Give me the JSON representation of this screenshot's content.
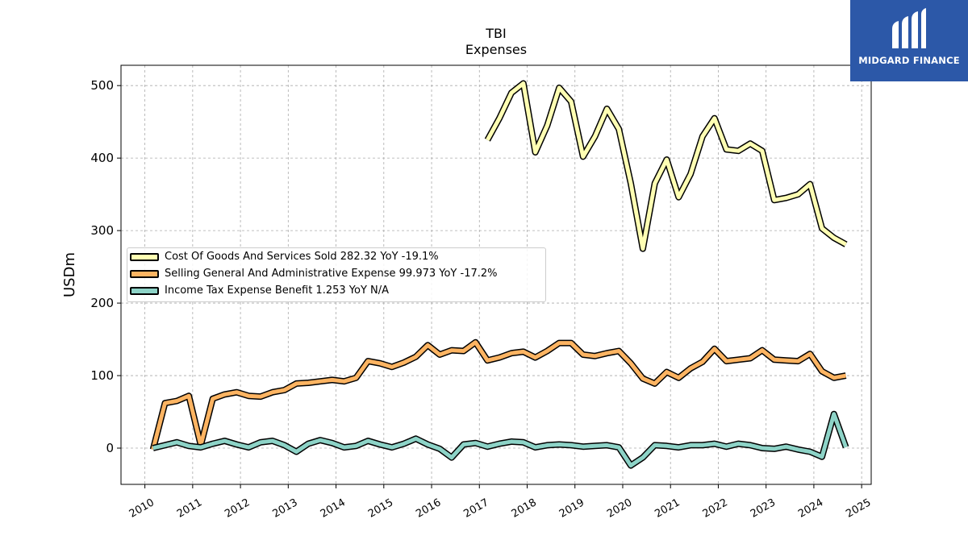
{
  "chart_data": {
    "type": "line",
    "title": "TBI",
    "subtitle": "Expenses",
    "ylabel": "USDm",
    "xlabel": "",
    "xlim": [
      2009.5,
      2025.2
    ],
    "ylim": [
      -50,
      528
    ],
    "yticks": [
      0,
      100,
      200,
      300,
      400,
      500
    ],
    "xticks": [
      "2010",
      "2011",
      "2012",
      "2013",
      "2014",
      "2015",
      "2016",
      "2017",
      "2018",
      "2019",
      "2020",
      "2021",
      "2022",
      "2023",
      "2024",
      "2025"
    ],
    "grid": true,
    "legend_position": "center-left",
    "series": [
      {
        "name": "Cost Of Goods And Services Sold  282.32 YoY -19.1%",
        "color": "#ffffb3",
        "points": [
          [
            2017.17,
            425
          ],
          [
            2017.42,
            455
          ],
          [
            2017.67,
            490
          ],
          [
            2017.92,
            503
          ],
          [
            2018.17,
            408
          ],
          [
            2018.42,
            445
          ],
          [
            2018.67,
            497
          ],
          [
            2018.92,
            478
          ],
          [
            2019.17,
            402
          ],
          [
            2019.42,
            430
          ],
          [
            2019.67,
            468
          ],
          [
            2019.92,
            440
          ],
          [
            2020.17,
            365
          ],
          [
            2020.42,
            275
          ],
          [
            2020.67,
            365
          ],
          [
            2020.92,
            398
          ],
          [
            2021.17,
            346
          ],
          [
            2021.42,
            378
          ],
          [
            2021.67,
            430
          ],
          [
            2021.92,
            455
          ],
          [
            2022.17,
            412
          ],
          [
            2022.42,
            410
          ],
          [
            2022.67,
            420
          ],
          [
            2022.92,
            410
          ],
          [
            2023.17,
            342
          ],
          [
            2023.42,
            345
          ],
          [
            2023.67,
            350
          ],
          [
            2023.92,
            364
          ],
          [
            2024.17,
            303
          ],
          [
            2024.42,
            290
          ],
          [
            2024.67,
            281
          ]
        ]
      },
      {
        "name": "Selling General And Administrative Expense  99.973 YoY -17.2%",
        "color": "#fdb462",
        "points": [
          [
            2010.17,
            -2
          ],
          [
            2010.42,
            62
          ],
          [
            2010.67,
            65
          ],
          [
            2010.92,
            72
          ],
          [
            2011.17,
            4
          ],
          [
            2011.42,
            68
          ],
          [
            2011.67,
            74
          ],
          [
            2011.92,
            77
          ],
          [
            2012.17,
            72
          ],
          [
            2012.42,
            71
          ],
          [
            2012.67,
            77
          ],
          [
            2012.92,
            80
          ],
          [
            2013.17,
            89
          ],
          [
            2013.42,
            90
          ],
          [
            2013.67,
            92
          ],
          [
            2013.92,
            94
          ],
          [
            2014.17,
            92
          ],
          [
            2014.42,
            97
          ],
          [
            2014.67,
            120
          ],
          [
            2014.92,
            117
          ],
          [
            2015.17,
            112
          ],
          [
            2015.42,
            118
          ],
          [
            2015.67,
            126
          ],
          [
            2015.92,
            142
          ],
          [
            2016.17,
            129
          ],
          [
            2016.42,
            135
          ],
          [
            2016.67,
            134
          ],
          [
            2016.92,
            146
          ],
          [
            2017.17,
            121
          ],
          [
            2017.42,
            125
          ],
          [
            2017.67,
            131
          ],
          [
            2017.92,
            133
          ],
          [
            2018.17,
            125
          ],
          [
            2018.42,
            134
          ],
          [
            2018.67,
            145
          ],
          [
            2018.92,
            145
          ],
          [
            2019.17,
            129
          ],
          [
            2019.42,
            127
          ],
          [
            2019.67,
            131
          ],
          [
            2019.92,
            134
          ],
          [
            2020.17,
            117
          ],
          [
            2020.42,
            96
          ],
          [
            2020.67,
            89
          ],
          [
            2020.92,
            105
          ],
          [
            2021.17,
            97
          ],
          [
            2021.42,
            110
          ],
          [
            2021.67,
            119
          ],
          [
            2021.92,
            137
          ],
          [
            2022.17,
            120
          ],
          [
            2022.42,
            122
          ],
          [
            2022.67,
            124
          ],
          [
            2022.92,
            135
          ],
          [
            2023.17,
            122
          ],
          [
            2023.42,
            121
          ],
          [
            2023.67,
            120
          ],
          [
            2023.92,
            130
          ],
          [
            2024.17,
            106
          ],
          [
            2024.42,
            97
          ],
          [
            2024.67,
            100
          ]
        ]
      },
      {
        "name": "Income Tax Expense Benefit  1.253 YoY N/A",
        "color": "#8dd3c7",
        "points": [
          [
            2010.17,
            0
          ],
          [
            2010.42,
            4
          ],
          [
            2010.67,
            8
          ],
          [
            2010.92,
            3
          ],
          [
            2011.17,
            1
          ],
          [
            2011.42,
            6
          ],
          [
            2011.67,
            10
          ],
          [
            2011.92,
            5
          ],
          [
            2012.17,
            1
          ],
          [
            2012.42,
            8
          ],
          [
            2012.67,
            10
          ],
          [
            2012.92,
            4
          ],
          [
            2013.17,
            -5
          ],
          [
            2013.42,
            6
          ],
          [
            2013.67,
            11
          ],
          [
            2013.92,
            7
          ],
          [
            2014.17,
            1
          ],
          [
            2014.42,
            3
          ],
          [
            2014.67,
            10
          ],
          [
            2014.92,
            5
          ],
          [
            2015.17,
            1
          ],
          [
            2015.42,
            6
          ],
          [
            2015.67,
            13
          ],
          [
            2015.92,
            5
          ],
          [
            2016.17,
            -1
          ],
          [
            2016.42,
            -13
          ],
          [
            2016.67,
            5
          ],
          [
            2016.92,
            7
          ],
          [
            2017.17,
            2
          ],
          [
            2017.42,
            6
          ],
          [
            2017.67,
            9
          ],
          [
            2017.92,
            8
          ],
          [
            2018.17,
            1
          ],
          [
            2018.42,
            4
          ],
          [
            2018.67,
            5
          ],
          [
            2018.92,
            4
          ],
          [
            2019.17,
            2
          ],
          [
            2019.42,
            3
          ],
          [
            2019.67,
            4
          ],
          [
            2019.92,
            1
          ],
          [
            2020.17,
            -24
          ],
          [
            2020.42,
            -13
          ],
          [
            2020.67,
            4
          ],
          [
            2020.92,
            3
          ],
          [
            2021.17,
            1
          ],
          [
            2021.42,
            4
          ],
          [
            2021.67,
            4
          ],
          [
            2021.92,
            6
          ],
          [
            2022.17,
            2
          ],
          [
            2022.42,
            6
          ],
          [
            2022.67,
            4
          ],
          [
            2022.92,
            0
          ],
          [
            2023.17,
            -1
          ],
          [
            2023.42,
            2
          ],
          [
            2023.67,
            -2
          ],
          [
            2023.92,
            -5
          ],
          [
            2024.17,
            -12
          ],
          [
            2024.42,
            47
          ],
          [
            2024.67,
            1.3
          ]
        ]
      }
    ]
  },
  "logo": {
    "text": "MIDGARD FINANCE",
    "color": "#2c58a8"
  }
}
